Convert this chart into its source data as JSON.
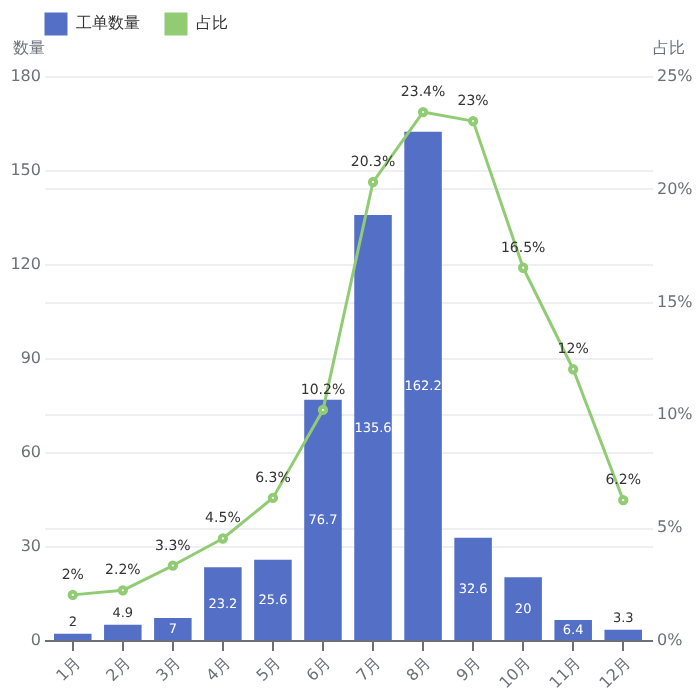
{
  "chart_data": {
    "type": "bar",
    "categories": [
      "1月",
      "2月",
      "3月",
      "4月",
      "5月",
      "6月",
      "7月",
      "8月",
      "9月",
      "10月",
      "11月",
      "12月"
    ],
    "series": [
      {
        "name": "工单数量",
        "color": "#5470c6",
        "values": [
          2,
          4.9,
          7,
          23.2,
          25.6,
          76.7,
          135.6,
          162.2,
          32.6,
          20,
          6.4,
          3.3
        ]
      },
      {
        "name": "占比",
        "type": "line",
        "axis": "y2",
        "color": "#91cc75",
        "marker": "circle",
        "values": [
          2,
          2.2,
          3.3,
          4.5,
          6.3,
          10.2,
          20.3,
          23.4,
          23,
          16.5,
          12,
          6.2
        ],
        "value_labels": [
          "2%",
          "2.2%",
          "3.3%",
          "4.5%",
          "6.3%",
          "10.2%",
          "20.3%",
          "23.4%",
          "23%",
          "16.5%",
          "12%",
          "6.2%"
        ]
      }
    ],
    "ylabel": "数量",
    "y2label": "占比",
    "ylim": [
      0,
      180
    ],
    "yticks": [
      0,
      30,
      60,
      90,
      120,
      150,
      180
    ],
    "y2lim": [
      0,
      25
    ],
    "y2ticks": [
      {
        "value": 0,
        "label": "0%"
      },
      {
        "value": 5,
        "label": "5%"
      },
      {
        "value": 10,
        "label": "10%"
      },
      {
        "value": 15,
        "label": "15%"
      },
      {
        "value": 20,
        "label": "20%"
      },
      {
        "value": 25,
        "label": "25%"
      }
    ],
    "grid": true,
    "legend": "top",
    "data_labels": true
  }
}
